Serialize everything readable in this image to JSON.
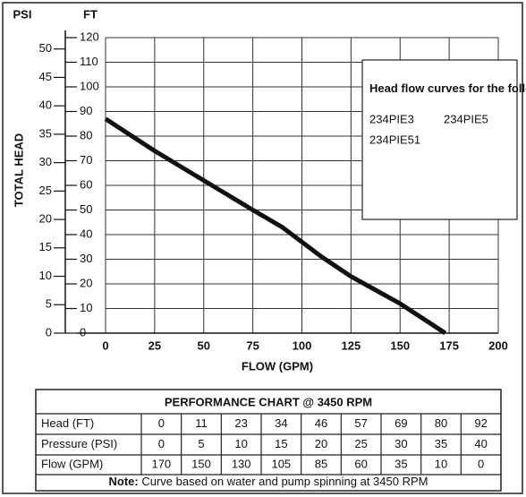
{
  "chart_data": {
    "type": "line",
    "y2_title": "PSI",
    "y_title": "FT",
    "axis_title": "TOTAL HEAD",
    "x_label": "FLOW (GPM)",
    "xlim": [
      0,
      200
    ],
    "xticks": [
      0,
      25,
      50,
      75,
      100,
      125,
      150,
      175,
      200
    ],
    "ylim": [
      0,
      120
    ],
    "yticks": [
      0,
      10,
      20,
      30,
      40,
      50,
      60,
      70,
      80,
      90,
      100,
      110,
      120
    ],
    "y2lim": [
      0,
      52
    ],
    "y2ticks": [
      0,
      5,
      10,
      15,
      20,
      25,
      30,
      35,
      40,
      45,
      50
    ],
    "grid": true,
    "series": [
      {
        "color": "#111111",
        "x": [
          0,
          25,
          50,
          75,
          90,
          110,
          125,
          150,
          173
        ],
        "values": [
          87,
          74,
          62,
          50,
          43,
          31,
          23,
          12,
          0
        ]
      }
    ],
    "legend": {
      "title": "Head flow curves for the following:",
      "items": [
        "234PIE3",
        "234PIE5",
        "234PIE51"
      ]
    }
  },
  "table": {
    "title": "PERFORMANCE CHART @ 3450 RPM",
    "rows": [
      [
        "Head (FT)",
        0,
        11,
        23,
        34,
        46,
        57,
        69,
        80,
        92
      ],
      [
        "Pressure (PSI)",
        0,
        5,
        10,
        15,
        20,
        25,
        30,
        35,
        40
      ],
      [
        "Flow (GPM)",
        170,
        150,
        130,
        105,
        85,
        60,
        35,
        10,
        0
      ]
    ],
    "note_label": "Note:",
    "note": "Curve based on water and pump spinning at 3450 RPM"
  }
}
